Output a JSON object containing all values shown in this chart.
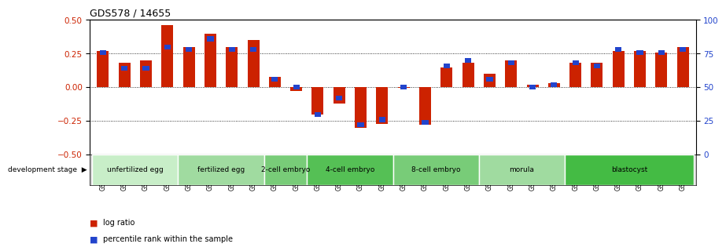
{
  "title": "GDS578 / 14655",
  "samples": [
    "GSM14658",
    "GSM14660",
    "GSM14661",
    "GSM14662",
    "GSM14663",
    "GSM14664",
    "GSM14665",
    "GSM14666",
    "GSM14667",
    "GSM14668",
    "GSM14677",
    "GSM14678",
    "GSM14679",
    "GSM14680",
    "GSM14681",
    "GSM14682",
    "GSM14683",
    "GSM14684",
    "GSM14685",
    "GSM14686",
    "GSM14687",
    "GSM14688",
    "GSM14689",
    "GSM14690",
    "GSM14691",
    "GSM14692",
    "GSM14693",
    "GSM14694"
  ],
  "log_ratio": [
    0.27,
    0.18,
    0.2,
    0.46,
    0.3,
    0.4,
    0.3,
    0.35,
    0.08,
    -0.03,
    -0.2,
    -0.12,
    -0.3,
    -0.27,
    -0.005,
    -0.28,
    0.15,
    0.18,
    0.1,
    0.2,
    0.02,
    0.03,
    0.18,
    0.18,
    0.27,
    0.27,
    0.26,
    0.3
  ],
  "percentile_pct": [
    76,
    64,
    64,
    80,
    78,
    86,
    78,
    78,
    56,
    50,
    30,
    42,
    22,
    26,
    50,
    24,
    66,
    70,
    56,
    68,
    50,
    52,
    68,
    66,
    78,
    76,
    76,
    78
  ],
  "stages": [
    {
      "label": "unfertilized egg",
      "count": 4,
      "color": "#c8eec8"
    },
    {
      "label": "fertilized egg",
      "count": 4,
      "color": "#a0dba0"
    },
    {
      "label": "2-cell embryo",
      "count": 2,
      "color": "#78cc78"
    },
    {
      "label": "4-cell embryo",
      "count": 4,
      "color": "#55c055"
    },
    {
      "label": "8-cell embryo",
      "count": 4,
      "color": "#78cc78"
    },
    {
      "label": "morula",
      "count": 4,
      "color": "#a0dba0"
    },
    {
      "label": "blastocyst",
      "count": 6,
      "color": "#44bb44"
    }
  ],
  "bar_color_red": "#cc2200",
  "bar_color_blue": "#2244cc",
  "ylim": [
    -0.5,
    0.5
  ],
  "yticks": [
    -0.5,
    -0.25,
    0.0,
    0.25,
    0.5
  ],
  "y2ticks": [
    0,
    25,
    50,
    75,
    100
  ],
  "hlines": [
    0.25,
    0.0,
    -0.25
  ],
  "background_color": "#ffffff"
}
